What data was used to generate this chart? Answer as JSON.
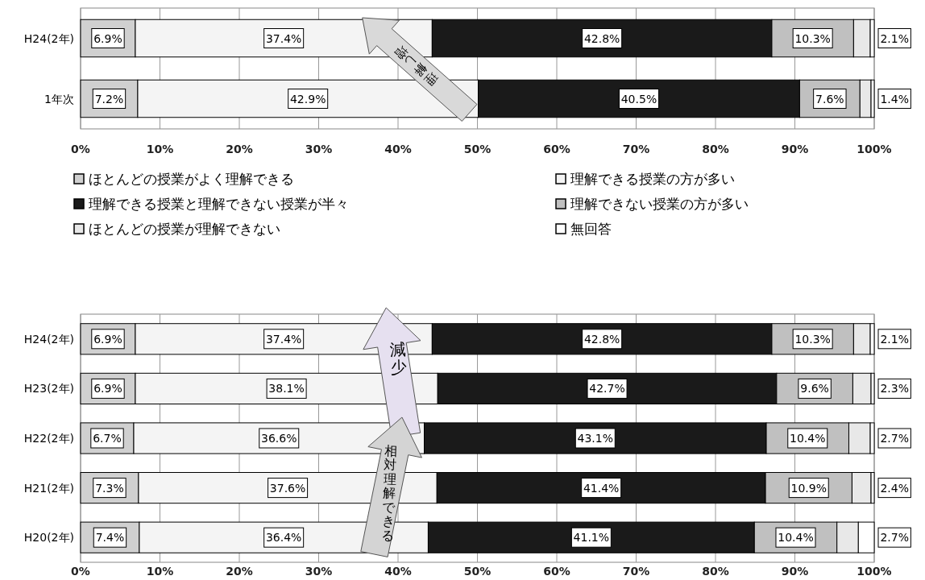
{
  "chart_data": [
    {
      "type": "bar",
      "orientation": "horizontal",
      "stacked": true,
      "categories": [
        "H24(2年)",
        "1年次"
      ],
      "xlim": [
        0,
        100
      ],
      "xticks": [
        {
          "value": 0,
          "label": "0%"
        },
        {
          "value": 10,
          "label": "10%"
        },
        {
          "value": 20,
          "label": "20%"
        },
        {
          "value": 30,
          "label": "30%"
        },
        {
          "value": 40,
          "label": "40%"
        },
        {
          "value": 50,
          "label": "50%"
        },
        {
          "value": 60,
          "label": "60%"
        },
        {
          "value": 70,
          "label": "70%"
        },
        {
          "value": 80,
          "label": "80%"
        },
        {
          "value": 90,
          "label": "90%"
        },
        {
          "value": 100,
          "label": "100%"
        }
      ],
      "grid": "x",
      "legend": "bottom",
      "series": [
        {
          "name": "ほとんどの授業がよく理解できる",
          "color": "#d0d0d0",
          "values": [
            6.9,
            7.2
          ],
          "value_labels": [
            "6.9%",
            "7.2%"
          ]
        },
        {
          "name": "理解できる授業の方が多い",
          "color": "#f4f4f4",
          "values": [
            37.4,
            42.9
          ],
          "value_labels": [
            "37.4%",
            "42.9%"
          ]
        },
        {
          "name": "理解できる授業と理解できない授業が半々",
          "color": "#1a1a1a",
          "values": [
            42.8,
            40.5
          ],
          "value_labels": [
            "42.8%",
            "40.5%"
          ]
        },
        {
          "name": "理解できない授業の方が多い",
          "color": "#c0c0c0",
          "values": [
            10.3,
            7.6
          ],
          "value_labels": [
            "10.3%",
            "7.6%"
          ]
        },
        {
          "name": "ほとんどの授業が理解できない",
          "color": "#e8e8e8",
          "values": [
            2.1,
            1.4
          ],
          "value_labels": [
            "2.1%",
            "1.4%"
          ]
        },
        {
          "name": "無回答",
          "color": "#ffffff",
          "values": [
            0.5,
            0.4
          ],
          "value_labels": [
            null,
            null
          ]
        }
      ],
      "annotations": [
        "理解し増"
      ]
    },
    {
      "type": "bar",
      "orientation": "horizontal",
      "stacked": true,
      "categories": [
        "H24(2年)",
        "H23(2年)",
        "H22(2年)",
        "H21(2年)",
        "H20(2年)"
      ],
      "xlim": [
        0,
        100
      ],
      "xticks": [
        {
          "value": 0,
          "label": "0%"
        },
        {
          "value": 10,
          "label": "10%"
        },
        {
          "value": 20,
          "label": "20%"
        },
        {
          "value": 30,
          "label": "30%"
        },
        {
          "value": 40,
          "label": "40%"
        },
        {
          "value": 50,
          "label": "50%"
        },
        {
          "value": 60,
          "label": "60%"
        },
        {
          "value": 70,
          "label": "70%"
        },
        {
          "value": 80,
          "label": "80%"
        },
        {
          "value": 90,
          "label": "90%"
        },
        {
          "value": 100,
          "label": "100%"
        }
      ],
      "grid": "x",
      "series": [
        {
          "color": "#d0d0d0",
          "values": [
            6.9,
            6.9,
            6.7,
            7.3,
            7.4
          ],
          "value_labels": [
            "6.9%",
            "6.9%",
            "6.7%",
            "7.3%",
            "7.4%"
          ]
        },
        {
          "color": "#f4f4f4",
          "values": [
            37.4,
            38.1,
            36.6,
            37.6,
            36.4
          ],
          "value_labels": [
            "37.4%",
            "38.1%",
            "36.6%",
            "37.6%",
            "36.4%"
          ]
        },
        {
          "color": "#1a1a1a",
          "values": [
            42.8,
            42.7,
            43.1,
            41.4,
            41.1
          ],
          "value_labels": [
            "42.8%",
            "42.7%",
            "43.1%",
            "41.4%",
            "41.1%"
          ]
        },
        {
          "color": "#c0c0c0",
          "values": [
            10.3,
            9.6,
            10.4,
            10.9,
            10.4
          ],
          "value_labels": [
            "10.3%",
            "9.6%",
            "10.4%",
            "10.9%",
            "10.4%"
          ]
        },
        {
          "color": "#e8e8e8",
          "values": [
            2.1,
            2.3,
            2.7,
            2.4,
            2.7
          ],
          "value_labels": [
            "2.1%",
            "2.3%",
            "2.7%",
            "2.4%",
            "2.7%"
          ]
        },
        {
          "color": "#ffffff",
          "values": [
            0.5,
            0.4,
            0.5,
            0.4,
            2.0
          ],
          "value_labels": [
            null,
            null,
            null,
            null,
            null
          ]
        }
      ],
      "annotations": [
        "減少",
        "相対理解できる"
      ]
    }
  ]
}
